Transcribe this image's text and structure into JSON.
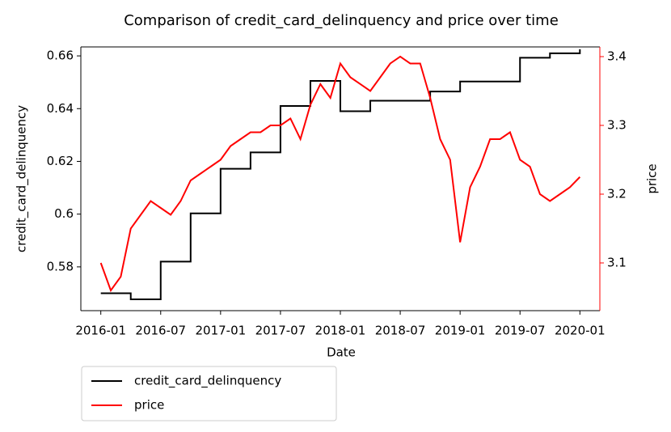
{
  "chart_data": {
    "type": "line",
    "title": "Comparison of credit_card_delinquency and price over time",
    "xlabel": "Date",
    "ylabel": "credit_card_delinquency",
    "y2label": "price",
    "x": [
      "2016-01",
      "2016-02",
      "2016-03",
      "2016-04",
      "2016-05",
      "2016-06",
      "2016-07",
      "2016-08",
      "2016-09",
      "2016-10",
      "2016-11",
      "2016-12",
      "2017-01",
      "2017-02",
      "2017-03",
      "2017-04",
      "2017-05",
      "2017-06",
      "2017-07",
      "2017-08",
      "2017-09",
      "2017-10",
      "2017-11",
      "2017-12",
      "2018-01",
      "2018-02",
      "2018-03",
      "2018-04",
      "2018-05",
      "2018-06",
      "2018-07",
      "2018-08",
      "2018-09",
      "2018-10",
      "2018-11",
      "2018-12",
      "2019-01",
      "2019-02",
      "2019-03",
      "2019-04",
      "2019-05",
      "2019-06",
      "2019-07",
      "2019-08",
      "2019-09",
      "2019-10",
      "2019-11",
      "2019-12",
      "2020-01"
    ],
    "xlim": [
      "2015-11",
      "2020-03"
    ],
    "xticks": [
      "2016-01",
      "2016-07",
      "2017-01",
      "2017-07",
      "2018-01",
      "2018-07",
      "2019-01",
      "2019-07",
      "2020-01"
    ],
    "ylim": [
      0.5634,
      0.6634
    ],
    "yticks": [
      0.58,
      0.6,
      0.62,
      0.64,
      0.66
    ],
    "y2lim": [
      3.0306,
      3.4141
    ],
    "y2ticks": [
      3.1,
      3.2,
      3.3,
      3.4
    ],
    "series": [
      {
        "name": "credit_card_delinquency",
        "color": "#000000",
        "drawstyle": "steps-post",
        "values": [
          0.57,
          0.57,
          0.57,
          0.5677,
          0.5677,
          0.5677,
          0.582,
          0.582,
          0.582,
          0.6003,
          0.6003,
          0.6003,
          0.6172,
          0.6172,
          0.6172,
          0.6234,
          0.6234,
          0.6234,
          0.641,
          0.641,
          0.641,
          0.6505,
          0.6505,
          0.6505,
          0.639,
          0.639,
          0.639,
          0.643,
          0.643,
          0.643,
          0.643,
          0.643,
          0.643,
          0.6465,
          0.6465,
          0.6465,
          0.6503,
          0.6503,
          0.6503,
          0.6503,
          0.6503,
          0.6503,
          0.6593,
          0.6593,
          0.6593,
          0.661,
          0.661,
          0.661,
          0.6625
        ]
      },
      {
        "name": "price",
        "color": "#ff0000",
        "axis": "y2",
        "values": [
          3.1,
          3.06,
          3.08,
          3.15,
          3.17,
          3.19,
          3.18,
          3.17,
          3.19,
          3.22,
          3.23,
          3.24,
          3.25,
          3.27,
          3.28,
          3.29,
          3.29,
          3.3,
          3.3,
          3.31,
          3.28,
          3.33,
          3.36,
          3.34,
          3.39,
          3.37,
          3.36,
          3.35,
          3.37,
          3.39,
          3.4,
          3.39,
          3.39,
          3.34,
          3.28,
          3.25,
          3.13,
          3.21,
          3.24,
          3.28,
          3.28,
          3.29,
          3.25,
          3.24,
          3.2,
          3.19,
          3.2,
          3.21,
          3.225
        ]
      }
    ]
  }
}
